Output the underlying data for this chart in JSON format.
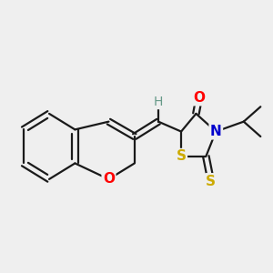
{
  "background_color": "#efefef",
  "bond_color": "#1a1a1a",
  "bond_width": 1.6,
  "figsize": [
    3.0,
    3.0
  ],
  "dpi": 100,
  "xlim": [
    0.05,
    0.95
  ],
  "ylim": [
    0.25,
    0.85
  ]
}
